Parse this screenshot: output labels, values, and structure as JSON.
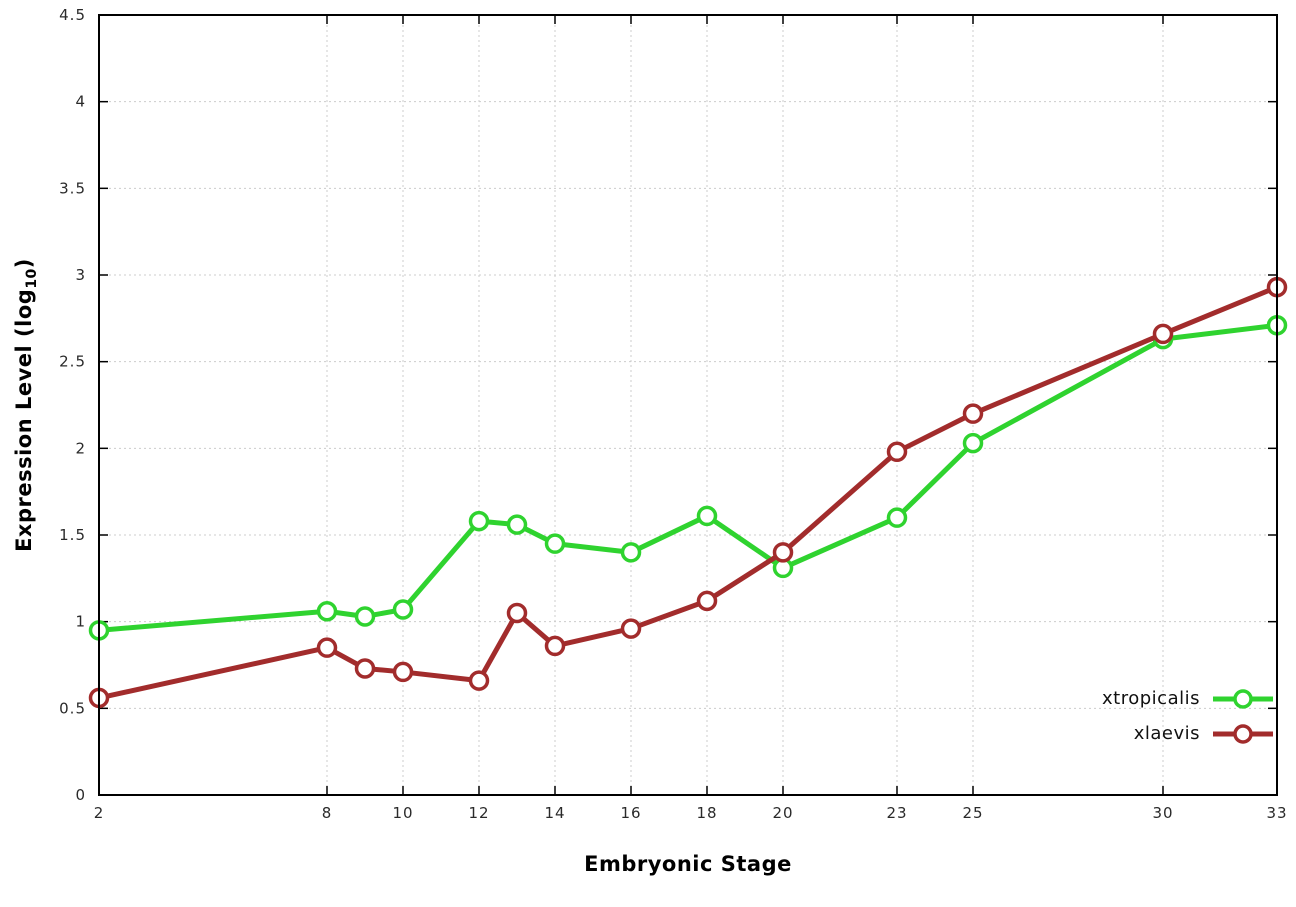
{
  "chart_data": {
    "type": "line",
    "title": "",
    "xlabel": "Embryonic Stage",
    "ylabel": "Expression Level (log10)",
    "ylabel_parts": {
      "pre": "Expression Level (log",
      "sub": "10",
      "post": ")"
    },
    "xlim": [
      2,
      33
    ],
    "ylim": [
      0,
      4.5
    ],
    "xticks": [
      2,
      8,
      10,
      12,
      14,
      16,
      18,
      20,
      23,
      25,
      30,
      33
    ],
    "yticks": [
      0,
      0.5,
      1,
      1.5,
      2,
      2.5,
      3,
      3.5,
      4,
      4.5
    ],
    "grid": true,
    "legend_position": "bottom-right",
    "x": [
      2,
      8,
      9,
      10,
      12,
      13,
      14,
      16,
      18,
      20,
      23,
      25,
      30,
      33
    ],
    "series": [
      {
        "name": "xtropicalis",
        "color": "#2fd32f",
        "values": [
          0.95,
          1.06,
          1.03,
          1.07,
          1.58,
          1.56,
          1.45,
          1.4,
          1.61,
          1.31,
          1.6,
          2.03,
          2.63,
          2.71
        ]
      },
      {
        "name": "xlaevis",
        "color": "#a22c2c",
        "values": [
          0.56,
          0.85,
          0.73,
          0.71,
          0.66,
          1.05,
          0.86,
          0.96,
          1.12,
          1.4,
          1.98,
          2.2,
          2.66,
          2.93
        ]
      }
    ],
    "styles": {
      "grid_color": "#cccccc",
      "border_color": "#000000",
      "tick_label_color": "#2a2a2a",
      "marker_fill": "#ffffff"
    }
  }
}
